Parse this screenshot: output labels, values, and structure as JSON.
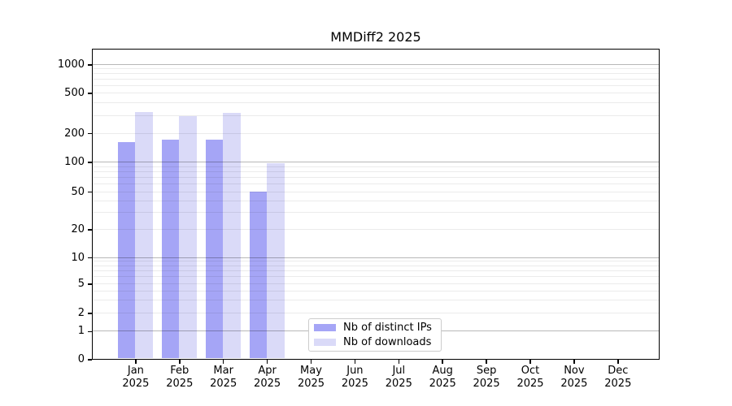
{
  "chart_data": {
    "type": "bar",
    "title": "MMDiff2 2025",
    "yscale": "symlog",
    "grid": true,
    "ylim": [
      0,
      1500
    ],
    "yticks": [
      0,
      1,
      2,
      5,
      10,
      20,
      50,
      100,
      200,
      500,
      1000
    ],
    "categories": [
      "Jan",
      "Feb",
      "Mar",
      "Apr",
      "May",
      "Jun",
      "Jul",
      "Aug",
      "Sep",
      "Oct",
      "Nov",
      "Dec"
    ],
    "year_label": "2025",
    "series": [
      {
        "name": "Nb of distinct IPs",
        "color": "#a5a5f6",
        "values": [
          160,
          172,
          170,
          50,
          0,
          0,
          0,
          0,
          0,
          0,
          0,
          0
        ]
      },
      {
        "name": "Nb of downloads",
        "color": "#dadaf8",
        "values": [
          325,
          295,
          320,
          97,
          0,
          0,
          0,
          0,
          0,
          0,
          0,
          0
        ]
      }
    ],
    "legend": {
      "entries": [
        "Nb of distinct IPs",
        "Nb of downloads"
      ],
      "position": "lower center"
    },
    "colors": {
      "major_gridline": "#b8b8b8",
      "minor_gridline": "#ebebeb",
      "axis": "#000000"
    }
  }
}
